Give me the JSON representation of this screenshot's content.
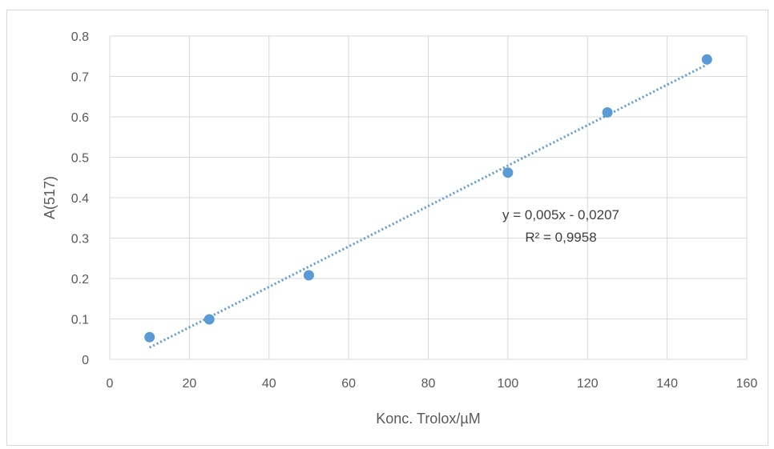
{
  "chart_data": {
    "type": "scatter",
    "title": "",
    "xlabel": "Konc. Trolox/µM",
    "ylabel": "A(517)",
    "xlim": [
      0,
      160
    ],
    "ylim": [
      0,
      0.8
    ],
    "x_ticks": [
      0,
      20,
      40,
      60,
      80,
      100,
      120,
      140,
      160
    ],
    "y_ticks": [
      0,
      0.1,
      0.2,
      0.3,
      0.4,
      0.5,
      0.6,
      0.7,
      0.8
    ],
    "y_tick_labels": [
      "0",
      "0.1",
      "0.2",
      "0.3",
      "0.4",
      "0.5",
      "0.6",
      "0.7",
      "0.8"
    ],
    "grid": true,
    "series": [
      {
        "x": [
          10,
          25,
          50,
          100,
          125,
          150
        ],
        "y": [
          0.055,
          0.099,
          0.208,
          0.462,
          0.611,
          0.742
        ],
        "color": "#5b9bd5"
      }
    ],
    "trendline": {
      "slope": 0.005,
      "intercept": -0.0207,
      "x_range": [
        10,
        150
      ],
      "style": "dotted",
      "color": "#5b9bd5",
      "equation_label": "y = 0,005x - 0,0207",
      "r2_label": "R² = 0,9958"
    },
    "colors": {
      "grid": "#d9d9d9",
      "text": "#595959"
    }
  }
}
